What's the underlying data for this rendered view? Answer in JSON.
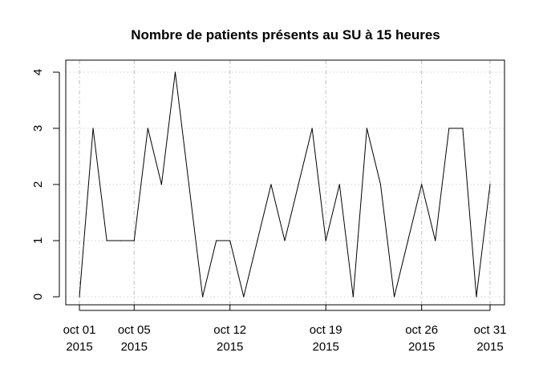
{
  "chart_data": {
    "type": "line",
    "title": "Nombre de patients présents au SU à 15 heures",
    "xlabel": "",
    "ylabel": "",
    "x": [
      "2015-10-01",
      "2015-10-02",
      "2015-10-03",
      "2015-10-04",
      "2015-10-05",
      "2015-10-06",
      "2015-10-07",
      "2015-10-08",
      "2015-10-09",
      "2015-10-10",
      "2015-10-11",
      "2015-10-12",
      "2015-10-13",
      "2015-10-14",
      "2015-10-15",
      "2015-10-16",
      "2015-10-17",
      "2015-10-18",
      "2015-10-19",
      "2015-10-20",
      "2015-10-21",
      "2015-10-22",
      "2015-10-23",
      "2015-10-24",
      "2015-10-25",
      "2015-10-26",
      "2015-10-27",
      "2015-10-28",
      "2015-10-29",
      "2015-10-30",
      "2015-10-31"
    ],
    "series": [
      {
        "values": [
          0,
          3,
          1,
          1,
          1,
          3,
          2,
          4,
          2,
          0,
          1,
          1,
          0,
          1,
          2,
          1,
          2,
          3,
          1,
          2,
          0,
          3,
          2,
          0,
          1,
          2,
          1,
          3,
          3,
          0,
          2
        ]
      }
    ],
    "xlim": [
      "2015-10-01",
      "2015-10-31"
    ],
    "ylim": [
      0,
      4
    ],
    "x_ticks": [
      {
        "date": "2015-10-01",
        "line1": "oct 01",
        "line2": "2015"
      },
      {
        "date": "2015-10-05",
        "line1": "oct 05",
        "line2": "2015"
      },
      {
        "date": "2015-10-12",
        "line1": "oct 12",
        "line2": "2015"
      },
      {
        "date": "2015-10-19",
        "line1": "oct 19",
        "line2": "2015"
      },
      {
        "date": "2015-10-26",
        "line1": "oct 26",
        "line2": "2015"
      },
      {
        "date": "2015-10-31",
        "line1": "oct 31",
        "line2": "2015"
      }
    ],
    "y_ticks": [
      0,
      1,
      2,
      3,
      4
    ],
    "grid": true,
    "colors": {
      "line": "#000000",
      "grid": "#d3d3d3",
      "tick_grid": "#bebebe"
    }
  }
}
